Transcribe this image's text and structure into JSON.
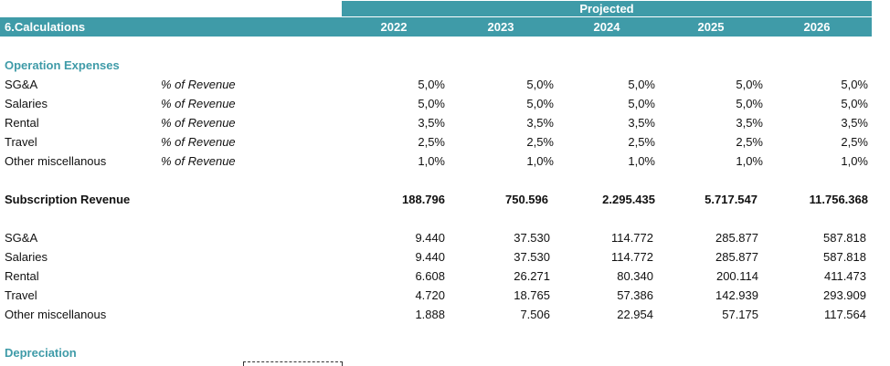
{
  "header": {
    "projected_label": "Projected",
    "sheet_title": "6.Calculations",
    "years": [
      "2022",
      "2023",
      "2024",
      "2025",
      "2026"
    ]
  },
  "sections": {
    "opex_title": "Operation Expenses",
    "depreciation_title": "Depreciation"
  },
  "opex_rates": [
    {
      "label": "SG&A",
      "unit": "% of Revenue",
      "values": [
        "5,0%",
        "5,0%",
        "5,0%",
        "5,0%",
        "5,0%"
      ]
    },
    {
      "label": "Salaries",
      "unit": "% of Revenue",
      "values": [
        "5,0%",
        "5,0%",
        "5,0%",
        "5,0%",
        "5,0%"
      ]
    },
    {
      "label": "Rental",
      "unit": "% of Revenue",
      "values": [
        "3,5%",
        "3,5%",
        "3,5%",
        "3,5%",
        "3,5%"
      ]
    },
    {
      "label": "Travel",
      "unit": "% of Revenue",
      "values": [
        "2,5%",
        "2,5%",
        "2,5%",
        "2,5%",
        "2,5%"
      ]
    },
    {
      "label": "Other miscellanous",
      "unit": "% of Revenue",
      "values": [
        "1,0%",
        "1,0%",
        "1,0%",
        "1,0%",
        "1,0%"
      ]
    }
  ],
  "subscription_revenue": {
    "label": "Subscription Revenue",
    "values": [
      "188.796",
      "750.596",
      "2.295.435",
      "5.717.547",
      "11.756.368"
    ]
  },
  "opex_amounts": [
    {
      "label": "SG&A",
      "values": [
        "9.440",
        "37.530",
        "114.772",
        "285.877",
        "587.818"
      ]
    },
    {
      "label": "Salaries",
      "values": [
        "9.440",
        "37.530",
        "114.772",
        "285.877",
        "587.818"
      ]
    },
    {
      "label": "Rental",
      "values": [
        "6.608",
        "26.271",
        "80.340",
        "200.114",
        "411.473"
      ]
    },
    {
      "label": "Travel",
      "values": [
        "4.720",
        "18.765",
        "57.386",
        "142.939",
        "293.909"
      ]
    },
    {
      "label": "Other miscellanous",
      "values": [
        "1.888",
        "7.506",
        "22.954",
        "57.175",
        "117.564"
      ]
    }
  ]
}
